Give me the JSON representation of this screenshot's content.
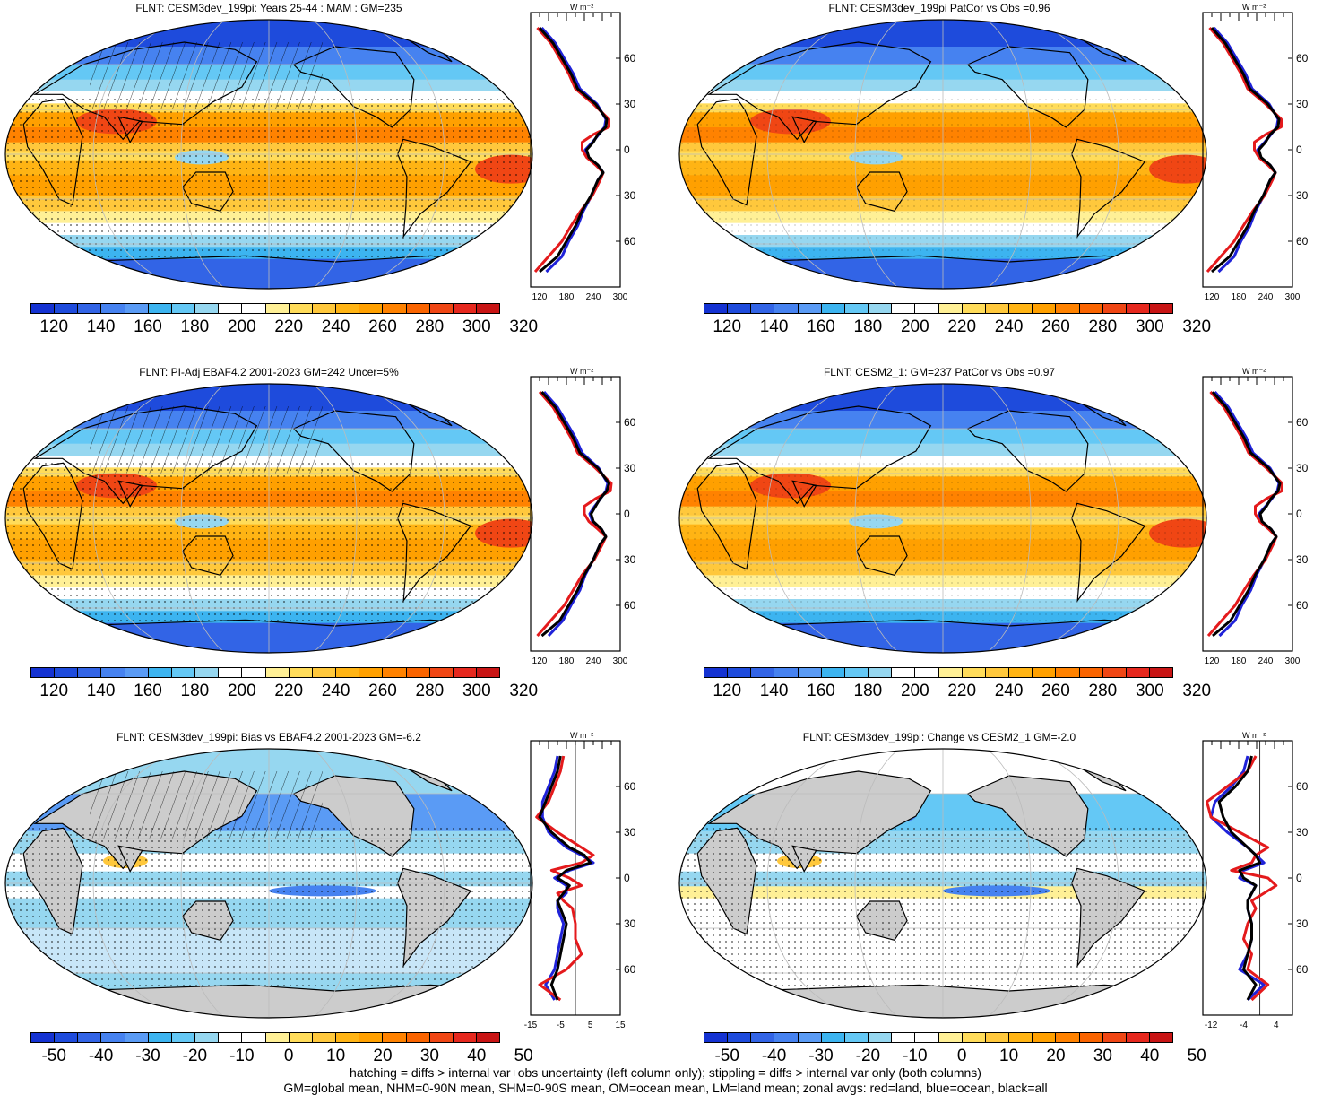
{
  "colors": {
    "land_gray": "#cccccc",
    "line_black": "#000000",
    "zonal_land": "#e41a1c",
    "zonal_ocean": "#1f22d9",
    "zonal_all": "#000000"
  },
  "abs_palette": [
    "#1432d2",
    "#1e4bdc",
    "#3264e6",
    "#4682f0",
    "#5a9bf5",
    "#3cb4f0",
    "#64c8f5",
    "#96d7f0",
    "#ffffff",
    "#ffffff",
    "#fff096",
    "#ffdc5a",
    "#ffc83c",
    "#ffb414",
    "#ffa000",
    "#ff8200",
    "#fa6400",
    "#f04614",
    "#e6281e",
    "#c81414"
  ],
  "diff_palette": [
    "#1432d2",
    "#1e4bdc",
    "#3264e6",
    "#4682f0",
    "#5a9bf5",
    "#3cb4f0",
    "#64c8f5",
    "#96d7f0",
    "#ffffff",
    "#ffffff",
    "#fff096",
    "#ffdc5a",
    "#ffc83c",
    "#ffb414",
    "#ffa000",
    "#ff8200",
    "#fa6400",
    "#f04614",
    "#e6281e",
    "#c81414"
  ],
  "abs_cbar_labels": [
    "120",
    "140",
    "160",
    "180",
    "200",
    "220",
    "240",
    "260",
    "280",
    "300",
    "320"
  ],
  "diff_cbar_labels": [
    "-50",
    "-40",
    "-30",
    "-20",
    "-10",
    "0",
    "10",
    "20",
    "30",
    "40",
    "50"
  ],
  "lat_ticks": [
    "60N",
    "30N",
    "0",
    "30S",
    "60S"
  ],
  "unit_label": "W m⁻²",
  "panels": [
    {
      "title": "FLNT: CESM3dev_199pi: Years 25-44 : MAM : GM=235",
      "kind": "abs",
      "hatch": true,
      "stipple": true,
      "zonal_ticks": [
        "120",
        "180",
        "240",
        "300"
      ],
      "zonal": {
        "xlim": [
          100,
          300
        ],
        "lat": [
          80,
          70,
          60,
          50,
          40,
          30,
          20,
          15,
          10,
          5,
          0,
          -5,
          -10,
          -15,
          -20,
          -30,
          -40,
          -50,
          -60,
          -70,
          -80
        ],
        "all": [
          120,
          150,
          170,
          190,
          205,
          245,
          270,
          268,
          250,
          240,
          225,
          230,
          250,
          262,
          250,
          235,
          215,
          200,
          180,
          160,
          120
        ],
        "land": [
          115,
          145,
          165,
          185,
          200,
          240,
          275,
          275,
          240,
          215,
          215,
          225,
          245,
          262,
          255,
          238,
          212,
          190,
          170,
          140,
          110
        ],
        "ocean": [
          125,
          155,
          175,
          195,
          210,
          248,
          268,
          265,
          252,
          238,
          222,
          228,
          250,
          262,
          250,
          236,
          218,
          205,
          185,
          170,
          135
        ]
      }
    },
    {
      "title": "FLNT: CESM3dev_199pi PatCor vs Obs =0.96",
      "kind": "abs",
      "hatch": false,
      "stipple": true,
      "zonal_ticks": [
        "120",
        "180",
        "240",
        "300"
      ],
      "zonal": {
        "xlim": [
          100,
          300
        ],
        "lat": [
          80,
          70,
          60,
          50,
          40,
          30,
          20,
          15,
          10,
          5,
          0,
          -5,
          -10,
          -15,
          -20,
          -30,
          -40,
          -50,
          -60,
          -70,
          -80
        ],
        "all": [
          120,
          150,
          170,
          190,
          205,
          245,
          270,
          268,
          250,
          240,
          225,
          230,
          250,
          262,
          250,
          235,
          215,
          200,
          180,
          160,
          120
        ],
        "land": [
          115,
          145,
          165,
          185,
          200,
          240,
          275,
          275,
          240,
          215,
          215,
          225,
          245,
          262,
          255,
          238,
          212,
          190,
          170,
          140,
          110
        ],
        "ocean": [
          125,
          155,
          175,
          195,
          210,
          248,
          268,
          265,
          252,
          238,
          222,
          228,
          250,
          262,
          250,
          236,
          218,
          205,
          185,
          170,
          135
        ]
      }
    },
    {
      "title": "FLNT: PI-Adj EBAF4.2 2001-2023 GM=242 Uncer=5%",
      "kind": "abs",
      "hatch": true,
      "stipple": true,
      "zonal_ticks": [
        "120",
        "180",
        "240",
        "300"
      ],
      "zonal": {
        "xlim": [
          100,
          300
        ],
        "lat": [
          80,
          70,
          60,
          50,
          40,
          30,
          20,
          15,
          10,
          5,
          0,
          -5,
          -10,
          -15,
          -20,
          -30,
          -40,
          -50,
          -60,
          -70,
          -80
        ],
        "all": [
          125,
          155,
          175,
          195,
          210,
          250,
          275,
          270,
          255,
          245,
          235,
          240,
          258,
          268,
          255,
          240,
          220,
          205,
          185,
          165,
          125
        ],
        "land": [
          120,
          150,
          170,
          190,
          205,
          245,
          280,
          278,
          245,
          220,
          220,
          230,
          250,
          268,
          260,
          242,
          215,
          195,
          175,
          145,
          115
        ],
        "ocean": [
          130,
          160,
          180,
          200,
          215,
          252,
          272,
          268,
          256,
          243,
          232,
          238,
          258,
          268,
          255,
          240,
          222,
          210,
          190,
          172,
          140
        ]
      }
    },
    {
      "title": "FLNT: CESM2_1: GM=237 PatCor vs Obs =0.97",
      "kind": "abs",
      "hatch": false,
      "stipple": true,
      "zonal_ticks": [
        "120",
        "180",
        "240",
        "300"
      ],
      "zonal": {
        "xlim": [
          100,
          300
        ],
        "lat": [
          80,
          70,
          60,
          50,
          40,
          30,
          20,
          15,
          10,
          5,
          0,
          -5,
          -10,
          -15,
          -20,
          -30,
          -40,
          -50,
          -60,
          -70,
          -80
        ],
        "all": [
          122,
          152,
          172,
          192,
          207,
          247,
          272,
          268,
          252,
          242,
          228,
          232,
          252,
          264,
          252,
          237,
          217,
          202,
          182,
          162,
          122
        ],
        "land": [
          117,
          147,
          167,
          187,
          202,
          242,
          277,
          276,
          242,
          217,
          217,
          227,
          247,
          264,
          257,
          240,
          214,
          192,
          172,
          142,
          112
        ],
        "ocean": [
          127,
          157,
          177,
          197,
          212,
          250,
          270,
          266,
          254,
          240,
          225,
          230,
          252,
          264,
          252,
          238,
          220,
          207,
          187,
          172,
          137
        ]
      }
    },
    {
      "title": "FLNT: CESM3dev_199pi: Bias vs EBAF4.2 2001-2023 GM=-6.2",
      "kind": "diff",
      "hatch": true,
      "stipple": true,
      "zonal_ticks": [
        "-15",
        "-5",
        "5",
        "15"
      ],
      "zonal": {
        "xlim": [
          -15,
          15
        ],
        "lat": [
          80,
          70,
          60,
          50,
          40,
          30,
          20,
          15,
          10,
          5,
          0,
          -5,
          -10,
          -15,
          -20,
          -30,
          -40,
          -50,
          -60,
          -70,
          -80
        ],
        "all": [
          -5,
          -6,
          -8,
          -10,
          -12,
          -8,
          -2,
          3,
          5,
          -3,
          -6,
          -2,
          -4,
          -6,
          -5,
          -3,
          -4,
          -5,
          -6,
          -8,
          -6
        ],
        "land": [
          -4,
          -5,
          -7,
          -9,
          -13,
          -6,
          2,
          6,
          2,
          -8,
          -2,
          2,
          -6,
          -4,
          -1,
          0,
          0,
          2,
          -3,
          -12,
          -5
        ],
        "ocean": [
          -6,
          -7,
          -9,
          -11,
          -11,
          -9,
          -3,
          2,
          6,
          -2,
          -7,
          -3,
          -3,
          -6,
          -6,
          -4,
          -5,
          -6,
          -7,
          -10,
          -7
        ]
      }
    },
    {
      "title": "FLNT: CESM3dev_199pi: Change vs CESM2_1 GM=-2.0",
      "kind": "diff",
      "hatch": false,
      "stipple": true,
      "zonal_ticks": [
        "-12",
        "-4",
        "4"
      ],
      "zonal": {
        "xlim": [
          -14,
          8
        ],
        "lat": [
          80,
          70,
          60,
          50,
          40,
          30,
          20,
          15,
          10,
          5,
          0,
          -5,
          -10,
          -15,
          -20,
          -30,
          -40,
          -50,
          -60,
          -70,
          -80
        ],
        "all": [
          -2,
          -3,
          -6,
          -10,
          -9,
          -7,
          -3,
          -1,
          0,
          -5,
          -4,
          -1,
          -2,
          -3,
          -3,
          -2,
          -2,
          -3,
          -4,
          -1,
          -3
        ],
        "land": [
          -1,
          -3,
          -8,
          -13,
          -12,
          -5,
          2,
          -1,
          -2,
          -7,
          2,
          4,
          1,
          -2,
          -1,
          -3,
          -4,
          -2,
          -3,
          2,
          -2
        ],
        "ocean": [
          -3,
          -4,
          -7,
          -11,
          -12,
          -8,
          -3,
          -1,
          1,
          -4,
          -5,
          -1,
          -2,
          -3,
          -3,
          -2,
          -2,
          -3,
          -5,
          1,
          -3
        ]
      }
    }
  ],
  "footnotes": [
    "hatching = diffs > internal var+obs uncertainty (left column only); stippling = diffs > internal var only (both columns)",
    "GM=global mean, NHM=0-90N mean, SHM=0-90S mean, OM=ocean mean, LM=land mean; zonal avgs: red=land, blue=ocean, black=all"
  ]
}
